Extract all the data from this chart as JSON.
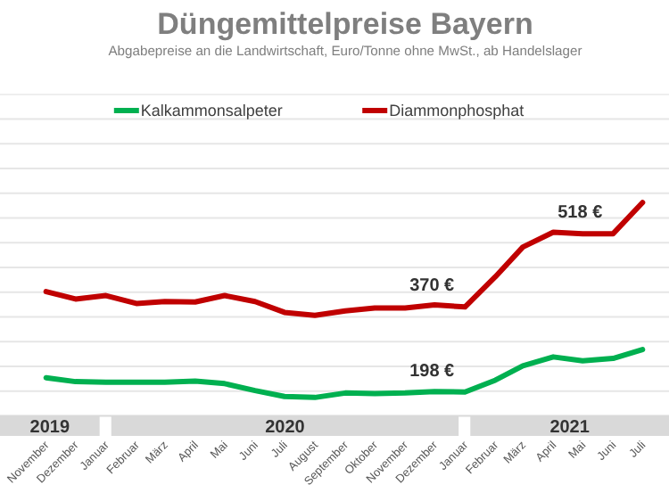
{
  "chart_data": {
    "type": "line",
    "title": "Düngemittelpreise Bayern",
    "subtitle": "Abgabepreise an die Landwirtschaft, Euro/Tonne ohne MwSt., ab Handelslager",
    "x": [
      "2019-11",
      "2019-12",
      "2020-01",
      "2020-02",
      "2020-03",
      "2020-04",
      "2020-05",
      "2020-06",
      "2020-07",
      "2020-08",
      "2020-09",
      "2020-10",
      "2020-11",
      "2020-12",
      "2021-01",
      "2021-02",
      "2021-03",
      "2021-04",
      "2021-05",
      "2021-06",
      "2021-07"
    ],
    "xlim": [
      "2019-09-15",
      "2021-07-28"
    ],
    "xticks": [
      {
        "value": "2019-11",
        "label": "November"
      },
      {
        "value": "2019-12",
        "label": "Dezember"
      },
      {
        "value": "2020-01",
        "label": "Januar"
      },
      {
        "value": "2020-02",
        "label": "Februar"
      },
      {
        "value": "2020-03",
        "label": "März"
      },
      {
        "value": "2020-04",
        "label": "April"
      },
      {
        "value": "2020-05",
        "label": "Mai"
      },
      {
        "value": "2020-06",
        "label": "Juni"
      },
      {
        "value": "2020-07",
        "label": "Juli"
      },
      {
        "value": "2020-08",
        "label": "August"
      },
      {
        "value": "2020-09",
        "label": "September"
      },
      {
        "value": "2020-10",
        "label": "Oktober"
      },
      {
        "value": "2020-11",
        "label": "November"
      },
      {
        "value": "2020-12",
        "label": "Dezember"
      },
      {
        "value": "2021-01",
        "label": "Januar"
      },
      {
        "value": "2021-02",
        "label": "Februar"
      },
      {
        "value": "2021-03",
        "label": "März"
      },
      {
        "value": "2021-04",
        "label": "April"
      },
      {
        "value": "2021-05",
        "label": "Mai"
      },
      {
        "value": "2021-06",
        "label": "Juni"
      },
      {
        "value": "2021-07",
        "label": "Juli"
      }
    ],
    "ylim": [
      150,
      750
    ],
    "yticks": [
      {
        "value": 200,
        "label": null
      },
      {
        "value": 250,
        "label": null
      },
      {
        "value": 300,
        "label": null
      },
      {
        "value": 350,
        "label": null
      },
      {
        "value": 400,
        "label": null
      },
      {
        "value": 450,
        "label": null
      },
      {
        "value": 500,
        "label": null
      },
      {
        "value": 550,
        "label": null
      },
      {
        "value": 600,
        "label": null
      },
      {
        "value": 650,
        "label": null
      },
      {
        "value": 700,
        "label": null
      },
      {
        "value": 750,
        "label": null
      }
    ],
    "tick_labels": "x",
    "grid": "y",
    "legend": "top",
    "marker": "none",
    "line_style": "solid",
    "series": [
      {
        "name": "Kalkammonsalpeter",
        "color": "#00b050",
        "values": [
          227,
          219,
          218,
          218,
          218,
          220,
          215,
          201,
          189,
          187,
          196,
          195,
          196,
          199,
          198,
          222,
          251,
          269,
          261,
          266,
          284
        ],
        "value_labels": [
          null,
          null,
          null,
          null,
          null,
          null,
          null,
          null,
          null,
          null,
          null,
          null,
          null,
          null,
          "198 €",
          null,
          null,
          null,
          null,
          null,
          null
        ]
      },
      {
        "name": "Diammonphosphat",
        "color": "#c00000",
        "values": [
          401,
          386,
          393,
          377,
          381,
          380,
          393,
          381,
          359,
          353,
          362,
          368,
          368,
          374,
          370,
          431,
          491,
          521,
          518,
          518,
          581
        ],
        "value_labels": [
          null,
          null,
          null,
          null,
          null,
          null,
          null,
          null,
          null,
          null,
          null,
          null,
          null,
          null,
          "370 €",
          null,
          null,
          null,
          null,
          "518 €",
          null
        ]
      }
    ],
    "annotations": [
      "2019",
      "2020",
      "2021"
    ]
  }
}
